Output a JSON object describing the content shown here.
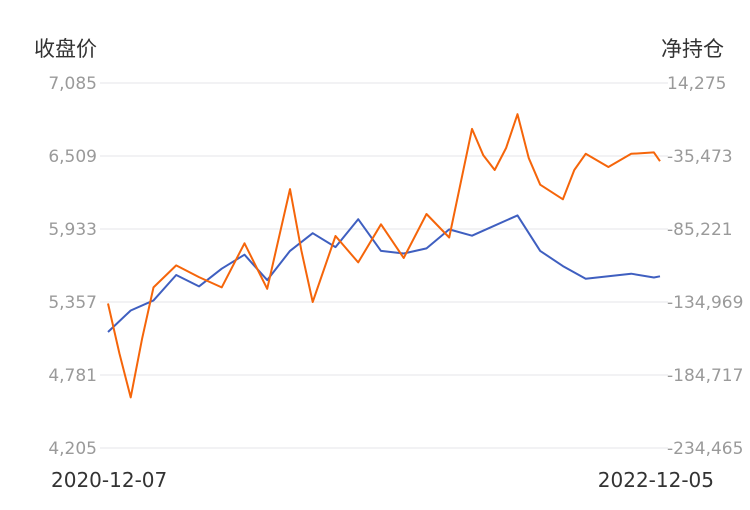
{
  "chart_data": {
    "type": "line",
    "y_left_title": "收盘价",
    "y_right_title": "净持仓",
    "x_start": "2020-12-07",
    "x_end": "2022-12-05",
    "y_left_ticks": [
      "7,085",
      "6,509",
      "5,933",
      "5,357",
      "4,781",
      "4,205"
    ],
    "y_right_ticks": [
      "14,275",
      "-35,473",
      "-85,221",
      "-134,969",
      "-184,717",
      "-234,465"
    ],
    "ylim_left": [
      4205,
      7085
    ],
    "ylim_right": [
      -234465,
      14275
    ],
    "grid": true,
    "colors": {
      "close": "#3f5fc0",
      "net_position": "#f5650a",
      "grid": "#e6e6ea"
    },
    "series": [
      {
        "axis": "left",
        "color": "#3f5fc0",
        "x": [
          "2020-12-07",
          "2021-01-06",
          "2021-02-05",
          "2021-03-07",
          "2021-04-06",
          "2021-05-06",
          "2021-06-05",
          "2021-07-05",
          "2021-08-04",
          "2021-09-03",
          "2021-10-03",
          "2021-11-02",
          "2021-12-02",
          "2022-01-01",
          "2022-01-31",
          "2022-03-02",
          "2022-04-01",
          "2022-05-01",
          "2022-05-31",
          "2022-06-30",
          "2022-07-30",
          "2022-08-29",
          "2022-09-28",
          "2022-10-28",
          "2022-11-27",
          "2022-12-05"
        ],
        "values": [
          5120,
          5290,
          5370,
          5570,
          5480,
          5620,
          5730,
          5530,
          5760,
          5900,
          5790,
          6010,
          5760,
          5740,
          5780,
          5930,
          5880,
          5960,
          6040,
          5760,
          5640,
          5540,
          5560,
          5580,
          5550,
          5560
        ]
      },
      {
        "axis": "right",
        "color": "#f5650a",
        "x": [
          "2020-12-07",
          "2020-12-22",
          "2021-01-06",
          "2021-01-21",
          "2021-02-05",
          "2021-03-07",
          "2021-04-06",
          "2021-05-06",
          "2021-06-05",
          "2021-07-05",
          "2021-08-04",
          "2021-08-19",
          "2021-09-03",
          "2021-10-03",
          "2021-11-02",
          "2021-12-02",
          "2022-01-01",
          "2022-01-31",
          "2022-03-02",
          "2022-04-01",
          "2022-04-16",
          "2022-05-01",
          "2022-05-16",
          "2022-05-31",
          "2022-06-15",
          "2022-06-30",
          "2022-07-30",
          "2022-08-14",
          "2022-08-29",
          "2022-09-28",
          "2022-10-28",
          "2022-11-27",
          "2022-12-05"
        ],
        "values": [
          -136000,
          -170000,
          -200000,
          -160000,
          -125000,
          -110000,
          -118000,
          -125000,
          -95000,
          -126000,
          -58000,
          -100000,
          -135000,
          -90000,
          -108000,
          -82000,
          -105000,
          -75000,
          -91000,
          -17000,
          -35000,
          -45000,
          -30000,
          -7000,
          -37000,
          -55000,
          -65000,
          -45000,
          -34000,
          -43000,
          -34000,
          -33000,
          -39000
        ]
      }
    ]
  }
}
